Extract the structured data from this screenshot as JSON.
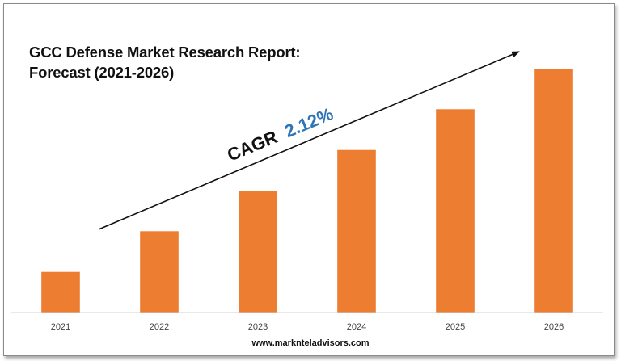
{
  "chart_data": {
    "type": "bar",
    "title_lines": [
      "GCC Defense Market Research Report:",
      "Forecast (2021-2026)"
    ],
    "categories": [
      "2021",
      "2022",
      "2023",
      "2024",
      "2025",
      "2026"
    ],
    "series": [
      {
        "values": [
          1.0,
          2.0,
          3.0,
          4.0,
          5.0,
          6.0
        ]
      }
    ],
    "ylim": [
      0,
      6
    ],
    "y_axis_visible": false,
    "grid": false,
    "bar_color": "#ED7D31",
    "annotation": {
      "cagr_label": "CAGR",
      "cagr_value": "2.12%",
      "label_color": "#111111",
      "value_color": "#2E75B6"
    }
  },
  "footer": {
    "website": "www.marknteladvisors.com"
  }
}
